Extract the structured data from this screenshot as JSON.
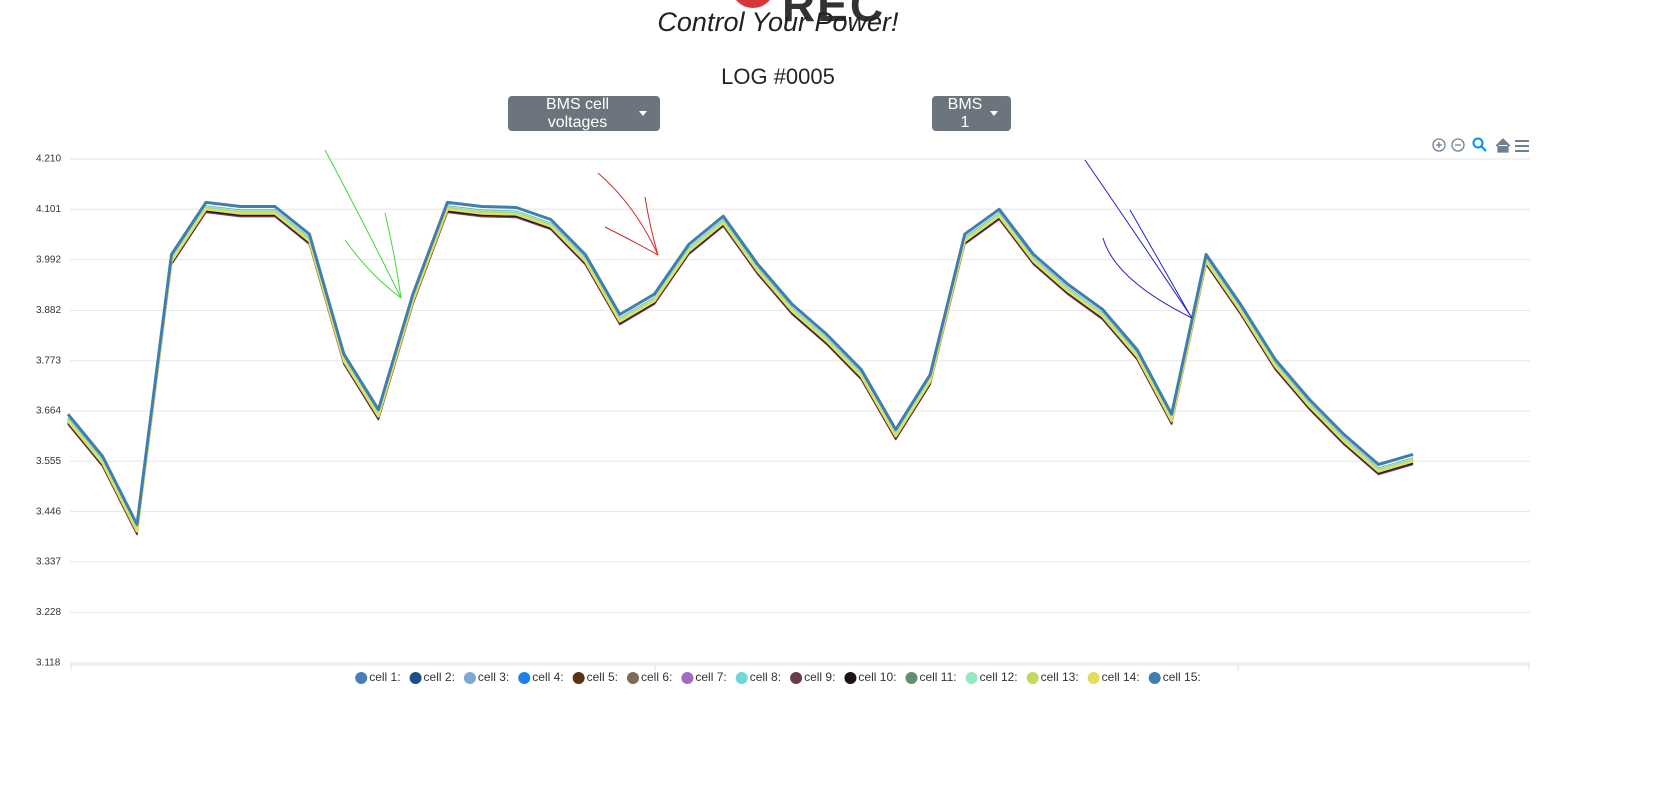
{
  "header": {
    "logo": "REC",
    "tagline": "Control Your Power!",
    "log_title": "LOG #0005",
    "dropdowns": [
      "BMS cell voltages",
      "BMS 1"
    ]
  },
  "chart_data": {
    "type": "line",
    "categories": [
      null,
      null,
      null,
      null,
      null,
      null,
      null,
      null,
      null,
      null,
      null,
      null,
      null,
      null,
      null,
      null,
      null,
      null,
      null,
      null,
      null,
      null,
      null,
      null,
      null,
      null,
      null,
      null,
      null,
      null,
      null,
      null,
      null,
      null,
      null,
      null,
      null,
      null,
      null,
      null
    ],
    "ylim": [
      3.118,
      4.21
    ],
    "yticks": [
      3.118,
      3.228,
      3.337,
      3.446,
      3.555,
      3.664,
      3.773,
      3.882,
      3.992,
      4.101,
      {
        "value": 4.21,
        "label": "4.210"
      }
    ],
    "grid": true,
    "legend": "bottom",
    "series": [
      {
        "name": "cell 1:",
        "color": "#4a7fb5",
        "values": [
          3.649,
          3.558,
          3.41,
          3.995,
          4.108,
          4.099,
          4.099,
          4.039,
          3.779,
          3.659,
          3.909,
          4.108,
          4.099,
          4.097,
          4.071,
          3.995,
          3.865,
          3.909,
          4.017,
          4.078,
          3.974,
          3.887,
          3.822,
          3.746,
          3.616,
          3.735,
          4.039,
          4.093,
          3.995,
          3.93,
          3.876,
          3.789,
          3.649,
          3.995,
          3.887,
          3.768,
          3.681,
          3.605,
          3.54,
          3.562
        ]
      },
      {
        "name": "cell 2:",
        "color": "#1a4f8a",
        "values": [
          3.643,
          3.552,
          3.404,
          3.989,
          4.102,
          4.093,
          4.093,
          4.033,
          3.773,
          3.653,
          3.903,
          4.102,
          4.093,
          4.091,
          4.065,
          3.989,
          3.859,
          3.903,
          4.011,
          4.072,
          3.968,
          3.881,
          3.816,
          3.74,
          3.61,
          3.729,
          4.033,
          4.087,
          3.989,
          3.924,
          3.87,
          3.783,
          3.643,
          3.989,
          3.881,
          3.762,
          3.675,
          3.599,
          3.534,
          3.556
        ]
      },
      {
        "name": "cell 3:",
        "color": "#7fa6d6",
        "values": [
          3.646,
          3.555,
          3.407,
          3.992,
          4.105,
          4.096,
          4.096,
          4.036,
          3.776,
          3.656,
          3.906,
          4.105,
          4.096,
          4.094,
          4.068,
          3.992,
          3.862,
          3.906,
          4.014,
          4.075,
          3.971,
          3.884,
          3.819,
          3.743,
          3.613,
          3.732,
          4.036,
          4.09,
          3.992,
          3.927,
          3.873,
          3.786,
          3.646,
          3.992,
          3.884,
          3.765,
          3.678,
          3.602,
          3.537,
          3.559
        ]
      },
      {
        "name": "cell 4:",
        "color": "#1a80f0",
        "values": [
          3.645,
          3.554,
          3.406,
          3.991,
          4.104,
          4.095,
          4.095,
          4.035,
          3.775,
          3.655,
          3.905,
          4.104,
          4.095,
          4.093,
          4.067,
          3.991,
          3.861,
          3.905,
          4.013,
          4.074,
          3.97,
          3.883,
          3.818,
          3.742,
          3.612,
          3.731,
          4.035,
          4.089,
          3.991,
          3.926,
          3.872,
          3.785,
          3.645,
          3.991,
          3.883,
          3.764,
          3.677,
          3.601,
          3.536,
          3.558
        ]
      },
      {
        "name": "cell 5:",
        "color": "#5c3310",
        "values": [
          3.639,
          3.548,
          3.4,
          3.985,
          4.098,
          4.089,
          4.089,
          4.029,
          3.769,
          3.649,
          3.899,
          4.098,
          4.089,
          4.087,
          4.061,
          3.985,
          3.855,
          3.899,
          4.007,
          4.068,
          3.964,
          3.877,
          3.812,
          3.736,
          3.606,
          3.725,
          4.029,
          4.083,
          3.985,
          3.92,
          3.866,
          3.779,
          3.639,
          3.985,
          3.877,
          3.758,
          3.671,
          3.595,
          3.53,
          3.552
        ]
      },
      {
        "name": "cell 6:",
        "color": "#7a6e58",
        "values": [
          3.637,
          3.546,
          3.398,
          3.983,
          4.096,
          4.087,
          4.087,
          4.027,
          3.767,
          3.647,
          3.897,
          4.096,
          4.087,
          4.085,
          4.059,
          3.983,
          3.853,
          3.897,
          4.005,
          4.066,
          3.962,
          3.875,
          3.81,
          3.734,
          3.604,
          3.723,
          4.027,
          4.081,
          3.983,
          3.918,
          3.864,
          3.777,
          3.637,
          3.983,
          3.875,
          3.756,
          3.669,
          3.593,
          3.528,
          3.55
        ]
      },
      {
        "name": "cell 7:",
        "color": "#9c6dc0",
        "values": [
          3.635,
          3.544,
          3.396,
          3.981,
          4.094,
          4.085,
          4.085,
          4.025,
          3.765,
          3.645,
          3.895,
          4.094,
          4.085,
          4.083,
          4.057,
          3.981,
          3.851,
          3.895,
          4.003,
          4.064,
          3.96,
          3.873,
          3.808,
          3.732,
          3.602,
          3.721,
          4.025,
          4.079,
          3.981,
          3.916,
          3.862,
          3.775,
          3.635,
          3.981,
          3.873,
          3.754,
          3.667,
          3.591,
          3.526,
          3.548
        ]
      },
      {
        "name": "cell 8:",
        "color": "#6ed8d8",
        "values": [
          3.647,
          3.556,
          3.408,
          3.993,
          4.106,
          4.097,
          4.097,
          4.037,
          3.777,
          3.657,
          3.907,
          4.106,
          4.097,
          4.095,
          4.069,
          3.993,
          3.863,
          3.907,
          4.015,
          4.076,
          3.972,
          3.885,
          3.82,
          3.744,
          3.614,
          3.733,
          4.037,
          4.091,
          3.993,
          3.928,
          3.874,
          3.787,
          3.647,
          3.993,
          3.885,
          3.766,
          3.679,
          3.603,
          3.538,
          3.56
        ]
      },
      {
        "name": "cell 9:",
        "color": "#6b3a4e",
        "values": [
          3.636,
          3.545,
          3.397,
          3.982,
          4.095,
          4.086,
          4.086,
          4.026,
          3.766,
          3.646,
          3.896,
          4.095,
          4.086,
          4.084,
          4.058,
          3.982,
          3.852,
          3.896,
          4.004,
          4.065,
          3.961,
          3.874,
          3.809,
          3.733,
          3.603,
          3.722,
          4.026,
          4.08,
          3.982,
          3.917,
          3.863,
          3.776,
          3.636,
          3.982,
          3.874,
          3.755,
          3.668,
          3.592,
          3.527,
          3.549
        ]
      },
      {
        "name": "cell 10:",
        "color": "#1c1414",
        "values": [
          3.638,
          3.547,
          3.399,
          3.984,
          4.097,
          4.088,
          4.088,
          4.028,
          3.768,
          3.648,
          3.898,
          4.097,
          4.088,
          4.086,
          4.06,
          3.984,
          3.854,
          3.898,
          4.006,
          4.067,
          3.963,
          3.876,
          3.811,
          3.735,
          3.605,
          3.724,
          4.028,
          4.082,
          3.984,
          3.919,
          3.865,
          3.778,
          3.638,
          3.984,
          3.876,
          3.757,
          3.67,
          3.594,
          3.529,
          3.551
        ]
      },
      {
        "name": "cell 11:",
        "color": "#5f8f6e",
        "values": [
          3.641,
          3.55,
          3.402,
          3.987,
          4.1,
          4.091,
          4.091,
          4.031,
          3.771,
          3.651,
          3.901,
          4.1,
          4.091,
          4.089,
          4.063,
          3.987,
          3.857,
          3.901,
          4.009,
          4.07,
          3.966,
          3.879,
          3.814,
          3.738,
          3.608,
          3.727,
          4.031,
          4.085,
          3.987,
          3.922,
          3.868,
          3.781,
          3.641,
          3.987,
          3.879,
          3.76,
          3.673,
          3.597,
          3.532,
          3.554
        ]
      },
      {
        "name": "cell 12:",
        "color": "#96e8c0",
        "values": [
          3.648,
          3.557,
          3.409,
          3.994,
          4.107,
          4.098,
          4.098,
          4.038,
          3.778,
          3.658,
          3.908,
          4.107,
          4.098,
          4.096,
          4.07,
          3.994,
          3.864,
          3.908,
          4.016,
          4.077,
          3.973,
          3.886,
          3.821,
          3.745,
          3.615,
          3.734,
          4.038,
          4.092,
          3.994,
          3.929,
          3.875,
          3.788,
          3.648,
          3.994,
          3.886,
          3.767,
          3.68,
          3.604,
          3.539,
          3.561
        ]
      },
      {
        "name": "cell 13:",
        "color": "#c2d95a",
        "values": [
          3.644,
          3.553,
          3.405,
          3.99,
          4.103,
          4.094,
          4.094,
          4.034,
          3.774,
          3.654,
          3.904,
          4.103,
          4.094,
          4.092,
          4.066,
          3.99,
          3.86,
          3.904,
          4.012,
          4.073,
          3.969,
          3.882,
          3.817,
          3.741,
          3.611,
          3.73,
          4.034,
          4.088,
          3.99,
          3.925,
          3.871,
          3.784,
          3.644,
          3.99,
          3.882,
          3.763,
          3.676,
          3.6,
          3.535,
          3.557
        ]
      },
      {
        "name": "cell 14:",
        "color": "#e3dd5e",
        "values": [
          3.642,
          3.551,
          3.403,
          3.988,
          4.101,
          4.092,
          4.092,
          4.032,
          3.772,
          3.652,
          3.902,
          4.101,
          4.092,
          4.09,
          4.064,
          3.988,
          3.858,
          3.902,
          4.01,
          4.071,
          3.967,
          3.88,
          3.815,
          3.739,
          3.609,
          3.728,
          4.032,
          4.086,
          3.988,
          3.923,
          3.869,
          3.782,
          3.642,
          3.988,
          3.88,
          3.761,
          3.674,
          3.598,
          3.533,
          3.555
        ]
      },
      {
        "name": "cell 15:",
        "color": "#3f7fae",
        "values": [
          3.657,
          3.566,
          3.418,
          4.003,
          4.116,
          4.107,
          4.107,
          4.047,
          3.787,
          3.667,
          3.917,
          4.116,
          4.107,
          4.105,
          4.079,
          4.003,
          3.873,
          3.917,
          4.025,
          4.086,
          3.982,
          3.895,
          3.83,
          3.754,
          3.624,
          3.743,
          4.047,
          4.101,
          4.003,
          3.938,
          3.884,
          3.797,
          3.657,
          4.003,
          3.895,
          3.776,
          3.689,
          3.613,
          3.548,
          3.57
        ]
      }
    ]
  }
}
